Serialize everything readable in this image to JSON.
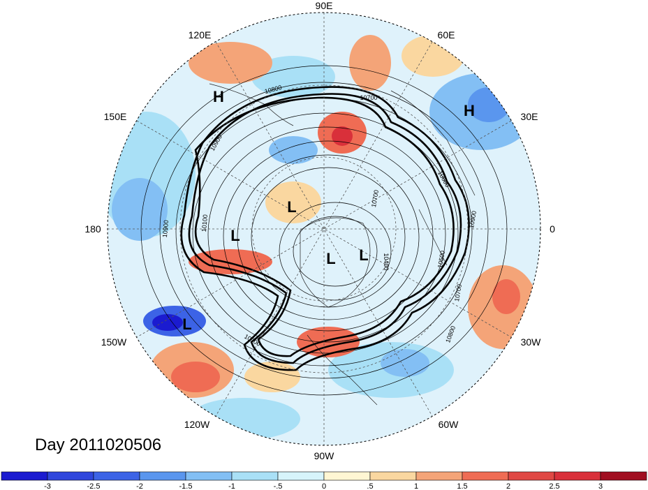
{
  "title": "Day 2011020506",
  "longitude_labels": [
    "90E",
    "60E",
    "30E",
    "0",
    "30W",
    "60W",
    "90W",
    "120W",
    "150W",
    "180",
    "150E",
    "120E"
  ],
  "pressure_systems": [
    "H",
    "H",
    "L",
    "L",
    "L",
    "L",
    "L"
  ],
  "contour_labels": [
    "10800",
    "10700",
    "10900",
    "10600",
    "10400",
    "10700",
    "10900",
    "10100",
    "10800",
    "10700",
    "10900",
    "10700",
    "10500"
  ],
  "colorbar": {
    "tick_labels": [
      "-3",
      "-2.5",
      "-2",
      "-1.5",
      "-1",
      "-.5",
      "0",
      ".5",
      "1",
      "1.5",
      "2",
      "2.5",
      "3"
    ],
    "colors": [
      "#1b1bd0",
      "#3c63e6",
      "#5a96ee",
      "#83bff4",
      "#a9e0f6",
      "#d7f4fb",
      "#ffffff",
      "#fff6d3",
      "#fad7a0",
      "#f4a478",
      "#ef6c54",
      "#d9303a",
      "#a10e20"
    ]
  }
}
